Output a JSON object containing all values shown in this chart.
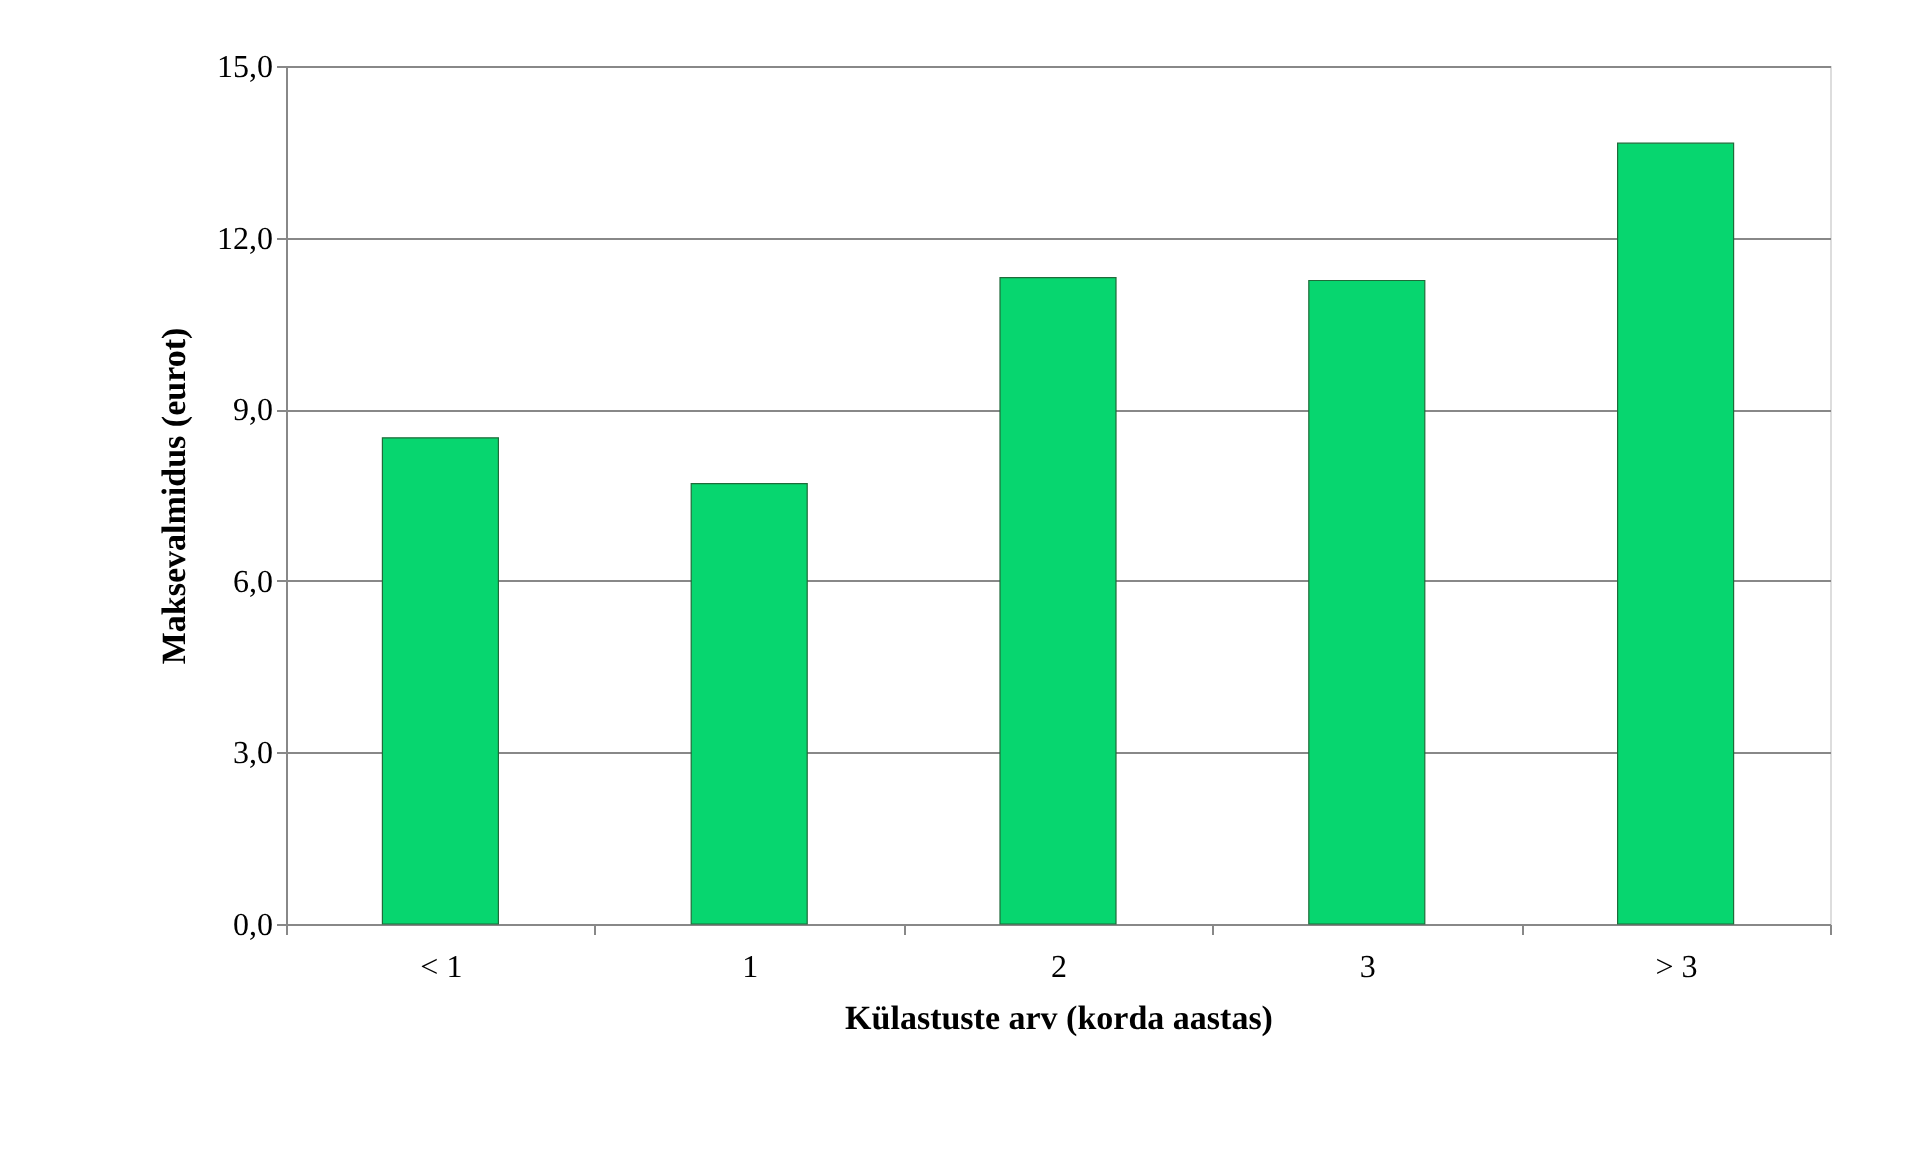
{
  "chart_data": {
    "type": "bar",
    "xlabel": "Külastuste arv (korda aastas)",
    "ylabel": "Maksevalmidus (eurot)",
    "categories": [
      "< 1",
      "1",
      "2",
      "3",
      "> 3"
    ],
    "values": [
      8.5,
      7.7,
      11.3,
      11.25,
      13.65
    ],
    "color": "#07d66f",
    "ylim": [
      0,
      15
    ],
    "yticks": [
      {
        "value": 0,
        "label": "0,0"
      },
      {
        "value": 3,
        "label": "3,0"
      },
      {
        "value": 6,
        "label": "6,0"
      },
      {
        "value": 9,
        "label": "9,0"
      },
      {
        "value": 12,
        "label": "12,0"
      },
      {
        "value": 15,
        "label": "15,0"
      }
    ],
    "grid": "y"
  }
}
